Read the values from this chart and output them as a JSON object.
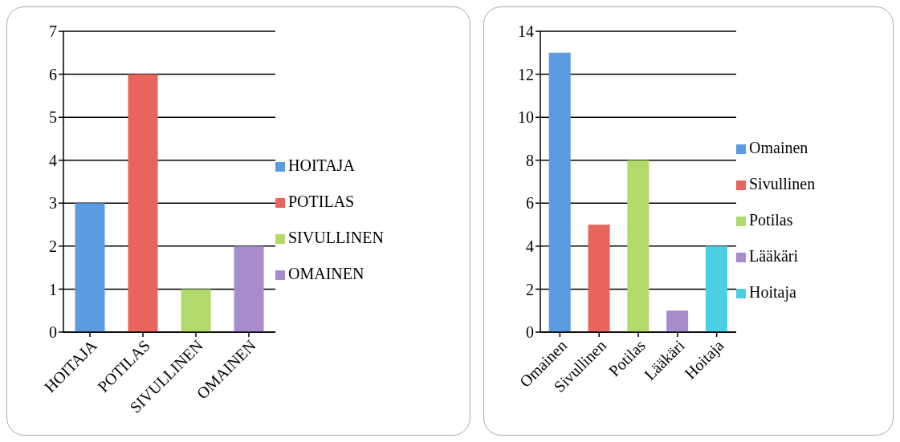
{
  "chart_data": [
    {
      "type": "bar",
      "categories": [
        "HOITAJA",
        "POTILAS",
        "SIVULLINEN",
        "OMAINEN"
      ],
      "stacked": true,
      "ylim": [
        0,
        7
      ],
      "yticks": [
        0,
        1,
        2,
        3,
        4,
        5,
        6,
        7
      ],
      "grid": "y",
      "legend": "right",
      "series": [
        {
          "name": "HOITAJA",
          "color": "#5b9be0",
          "values": [
            3,
            null,
            null,
            null
          ]
        },
        {
          "name": "POTILAS",
          "color": "#e8645c",
          "values": [
            null,
            6,
            null,
            null
          ]
        },
        {
          "name": "SIVULLINEN",
          "color": "#b2da6a",
          "values": [
            null,
            null,
            1,
            null
          ]
        },
        {
          "name": "OMAINEN",
          "color": "#a68ccc",
          "values": [
            null,
            null,
            null,
            2
          ]
        }
      ]
    },
    {
      "type": "bar",
      "categories": [
        "Omainen",
        "Sivullinen",
        "Potilas",
        "Lääkäri",
        "Hoitaja"
      ],
      "stacked": true,
      "ylim": [
        0,
        14
      ],
      "yticks": [
        0,
        2,
        4,
        6,
        8,
        10,
        12,
        14
      ],
      "grid": "y",
      "legend": "right",
      "series": [
        {
          "name": "Omainen",
          "color": "#5b9be0",
          "values": [
            13,
            null,
            null,
            null,
            null
          ]
        },
        {
          "name": "Sivullinen",
          "color": "#e8645c",
          "values": [
            null,
            5,
            null,
            null,
            null
          ]
        },
        {
          "name": "Potilas",
          "color": "#b2da6a",
          "values": [
            null,
            null,
            8,
            null,
            null
          ]
        },
        {
          "name": "Lääkäri",
          "color": "#a68ccc",
          "values": [
            null,
            null,
            null,
            1,
            null
          ]
        },
        {
          "name": "Hoitaja",
          "color": "#4ccfe0",
          "values": [
            null,
            null,
            null,
            null,
            4
          ]
        }
      ]
    }
  ]
}
